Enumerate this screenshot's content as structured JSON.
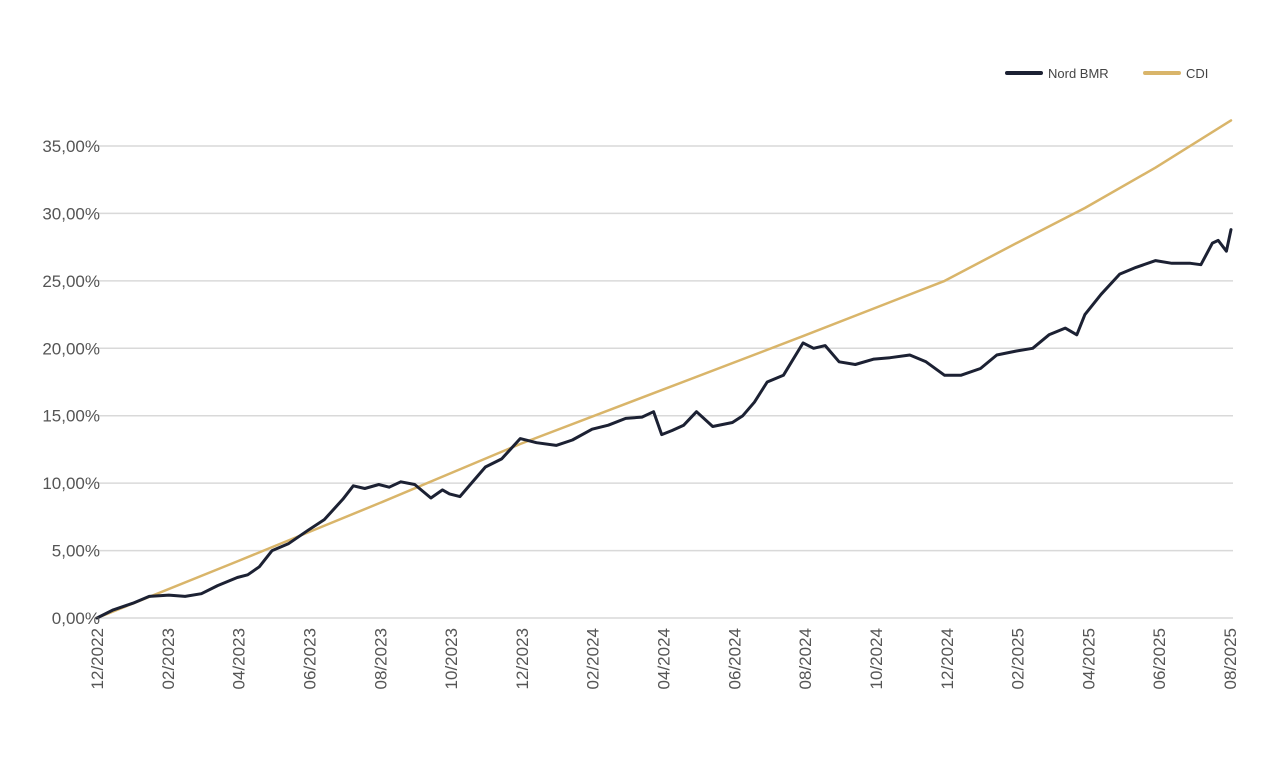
{
  "chart_data": {
    "type": "line",
    "title": "",
    "xlabel": "",
    "ylabel": "",
    "x_tick_labels": [
      "12/2022",
      "02/2023",
      "04/2023",
      "06/2023",
      "08/2023",
      "10/2023",
      "12/2023",
      "02/2024",
      "04/2024",
      "06/2024",
      "08/2024",
      "10/2024",
      "12/2024",
      "02/2025",
      "04/2025",
      "06/2025",
      "08/2025"
    ],
    "y_tick_labels": [
      "0,00%",
      "5,00%",
      "10,00%",
      "15,00%",
      "20,00%",
      "25,00%",
      "30,00%",
      "35,00%"
    ],
    "ylim": [
      0,
      37
    ],
    "xlim": [
      "2022-12-01",
      "2025-08-05"
    ],
    "grid": true,
    "legend_position": "top-right",
    "series": [
      {
        "name": "Nord BMR",
        "color": "#1c2133",
        "x": [
          "2022-12-01",
          "2022-12-15",
          "2023-01-01",
          "2023-01-15",
          "2023-02-01",
          "2023-02-15",
          "2023-03-01",
          "2023-03-15",
          "2023-04-01",
          "2023-04-10",
          "2023-04-20",
          "2023-05-01",
          "2023-05-15",
          "2023-06-01",
          "2023-06-15",
          "2023-07-01",
          "2023-07-10",
          "2023-07-20",
          "2023-08-01",
          "2023-08-10",
          "2023-08-20",
          "2023-09-01",
          "2023-09-15",
          "2023-09-25",
          "2023-10-01",
          "2023-10-10",
          "2023-10-20",
          "2023-11-01",
          "2023-11-15",
          "2023-12-01",
          "2023-12-15",
          "2024-01-01",
          "2024-01-15",
          "2024-02-01",
          "2024-02-15",
          "2024-03-01",
          "2024-03-15",
          "2024-03-25",
          "2024-04-01",
          "2024-04-10",
          "2024-04-20",
          "2024-05-01",
          "2024-05-15",
          "2024-06-01",
          "2024-06-10",
          "2024-06-20",
          "2024-07-01",
          "2024-07-15",
          "2024-08-01",
          "2024-08-10",
          "2024-08-20",
          "2024-09-01",
          "2024-09-15",
          "2024-10-01",
          "2024-10-15",
          "2024-11-01",
          "2024-11-15",
          "2024-12-01",
          "2024-12-15",
          "2025-01-01",
          "2025-01-15",
          "2025-02-01",
          "2025-02-15",
          "2025-03-01",
          "2025-03-15",
          "2025-03-25",
          "2025-04-01",
          "2025-04-15",
          "2025-05-01",
          "2025-05-15",
          "2025-06-01",
          "2025-06-15",
          "2025-07-01",
          "2025-07-10",
          "2025-07-20",
          "2025-07-25",
          "2025-08-01",
          "2025-08-05"
        ],
        "values": [
          0.0,
          0.6,
          1.1,
          1.6,
          1.7,
          1.6,
          1.8,
          2.4,
          3.0,
          3.2,
          3.8,
          5.0,
          5.5,
          6.5,
          7.3,
          8.8,
          9.8,
          9.6,
          9.9,
          9.7,
          10.1,
          9.9,
          8.9,
          9.5,
          9.2,
          9.0,
          10.0,
          11.2,
          11.8,
          13.3,
          13.0,
          12.8,
          13.2,
          14.0,
          14.3,
          14.8,
          14.9,
          15.3,
          13.6,
          13.9,
          14.3,
          15.3,
          14.2,
          14.5,
          15.0,
          16.0,
          17.5,
          18.0,
          20.4,
          20.0,
          20.2,
          19.0,
          18.8,
          19.2,
          19.3,
          19.5,
          19.0,
          18.0,
          18.0,
          18.5,
          19.5,
          19.8,
          20.0,
          21.0,
          21.5,
          21.0,
          22.5,
          24.0,
          25.5,
          26.0,
          26.5,
          26.3,
          26.3,
          26.2,
          27.8,
          28.0,
          27.2,
          28.8
        ]
      },
      {
        "name": "CDI",
        "color": "#d9b56a",
        "x": [
          "2022-12-01",
          "2023-04-01",
          "2023-08-01",
          "2023-12-01",
          "2024-04-01",
          "2024-08-01",
          "2024-12-01",
          "2025-02-01",
          "2025-04-01",
          "2025-06-01",
          "2025-08-05"
        ],
        "values": [
          0.0,
          4.2,
          8.5,
          12.9,
          16.9,
          20.9,
          25.0,
          27.8,
          30.4,
          33.4,
          36.9
        ]
      }
    ]
  }
}
